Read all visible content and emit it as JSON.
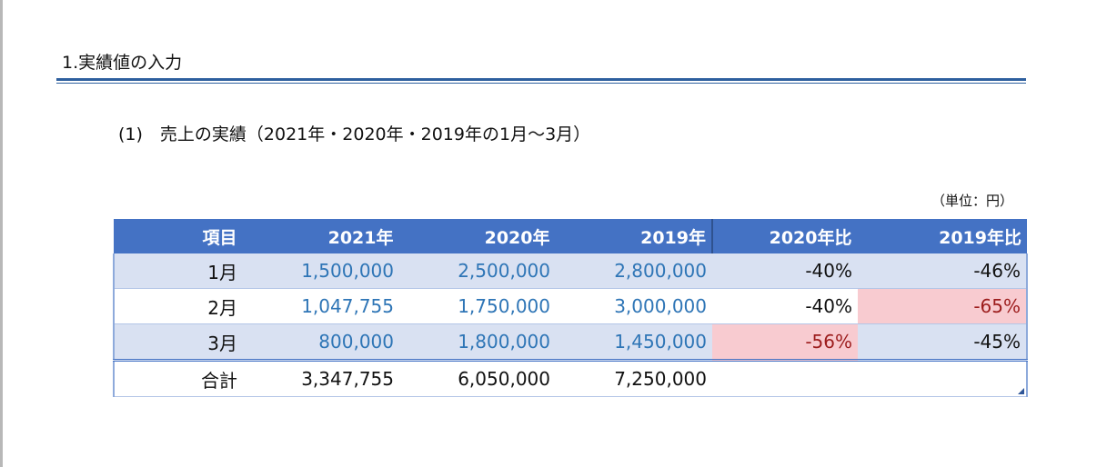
{
  "section": {
    "heading": "1.実績値の入力",
    "subheading": "(1)　売上の実績（2021年・2020年・2019年の1月～3月）",
    "unit": "（単位：円）"
  },
  "table": {
    "headers": [
      "項目",
      "2021年",
      "2020年",
      "2019年",
      "2020年比",
      "2019年比"
    ],
    "rows": [
      {
        "label": "1月",
        "v2021": "1,500,000",
        "v2020": "2,500,000",
        "v2019": "2,800,000",
        "r2020": "-40%",
        "r2019": "-46%"
      },
      {
        "label": "2月",
        "v2021": "1,047,755",
        "v2020": "1,750,000",
        "v2019": "3,000,000",
        "r2020": "-40%",
        "r2019": "-65%"
      },
      {
        "label": "3月",
        "v2021": "800,000",
        "v2020": "1,800,000",
        "v2019": "1,450,000",
        "r2020": "-56%",
        "r2019": "-45%"
      }
    ],
    "total": {
      "label": "合計",
      "v2021": "3,347,755",
      "v2020": "6,050,000",
      "v2019": "7,250,000"
    }
  },
  "colors": {
    "header_bg": "#4472c4",
    "band_bg": "#d9e1f2",
    "input_text": "#2e75b6",
    "highlight_bg": "#f8cbd0",
    "highlight_text": "#9c1c1c"
  }
}
